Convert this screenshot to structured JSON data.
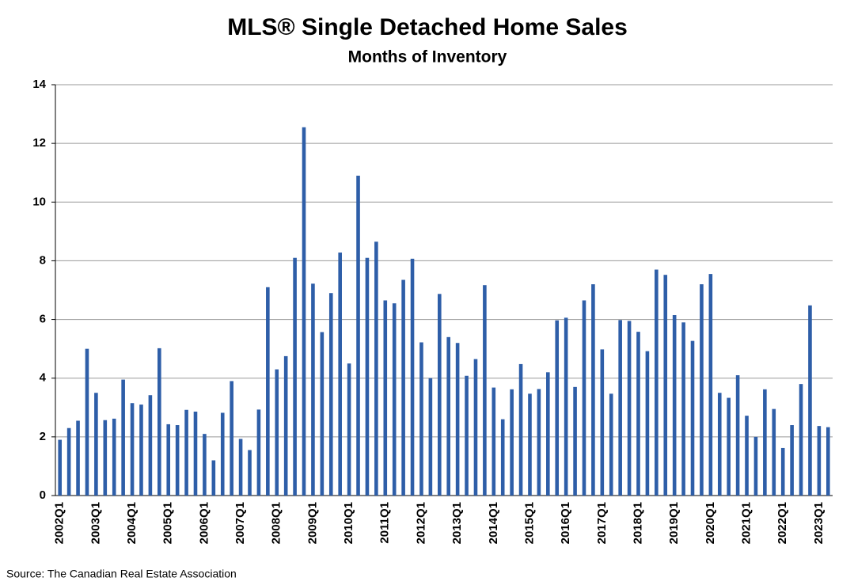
{
  "chart_data": {
    "type": "bar",
    "title": "MLS® Single Detached Home Sales",
    "subtitle": "Months of Inventory",
    "source": "Source: The Canadian Real Estate Association",
    "categories": [
      "2002Q1",
      null,
      null,
      null,
      "2003Q1",
      null,
      null,
      null,
      "2004Q1",
      null,
      null,
      null,
      "2005Q1",
      null,
      null,
      null,
      "2006Q1",
      null,
      null,
      null,
      "2007Q1",
      null,
      null,
      null,
      "2008Q1",
      null,
      null,
      null,
      "2009Q1",
      null,
      null,
      null,
      "2010Q1",
      null,
      null,
      null,
      "2011Q1",
      null,
      null,
      null,
      "2012Q1",
      null,
      null,
      null,
      "2013Q1",
      null,
      null,
      null,
      "2014Q1",
      null,
      null,
      null,
      "2015Q1",
      null,
      null,
      null,
      "2016Q1",
      null,
      null,
      null,
      "2017Q1",
      null,
      null,
      null,
      "2018Q1",
      null,
      null,
      null,
      "2019Q1",
      null,
      null,
      null,
      "2020Q1",
      null,
      null,
      null,
      "2021Q1",
      null,
      null,
      null,
      "2022Q1",
      null,
      null,
      null,
      "2023Q1",
      null
    ],
    "values": [
      1.9,
      2.3,
      2.55,
      5.0,
      3.5,
      2.57,
      2.62,
      3.95,
      3.15,
      3.1,
      3.42,
      5.02,
      2.43,
      2.4,
      2.92,
      2.86,
      2.1,
      1.2,
      2.82,
      3.9,
      1.93,
      1.55,
      2.93,
      7.1,
      4.3,
      4.75,
      8.1,
      12.55,
      7.22,
      5.57,
      6.9,
      8.28,
      4.5,
      10.9,
      8.1,
      8.65,
      6.65,
      6.55,
      7.35,
      8.07,
      5.22,
      4.0,
      6.87,
      5.4,
      5.2,
      4.08,
      4.65,
      7.17,
      3.68,
      2.6,
      3.62,
      4.48,
      3.47,
      3.63,
      4.2,
      5.97,
      6.06,
      3.7,
      6.65,
      7.2,
      4.98,
      3.47,
      5.98,
      5.95,
      5.58,
      4.92,
      7.7,
      7.52,
      6.15,
      5.9,
      5.27,
      7.2,
      7.55,
      3.5,
      3.33,
      4.1,
      2.72,
      2.0,
      3.62,
      2.95,
      1.62,
      2.4,
      3.8,
      6.48,
      2.37,
      2.33
    ],
    "color": "#2e5ea8",
    "ylim": [
      0,
      14
    ],
    "yticks": [
      0,
      2,
      4,
      6,
      8,
      10,
      12,
      14
    ],
    "grid": true
  }
}
